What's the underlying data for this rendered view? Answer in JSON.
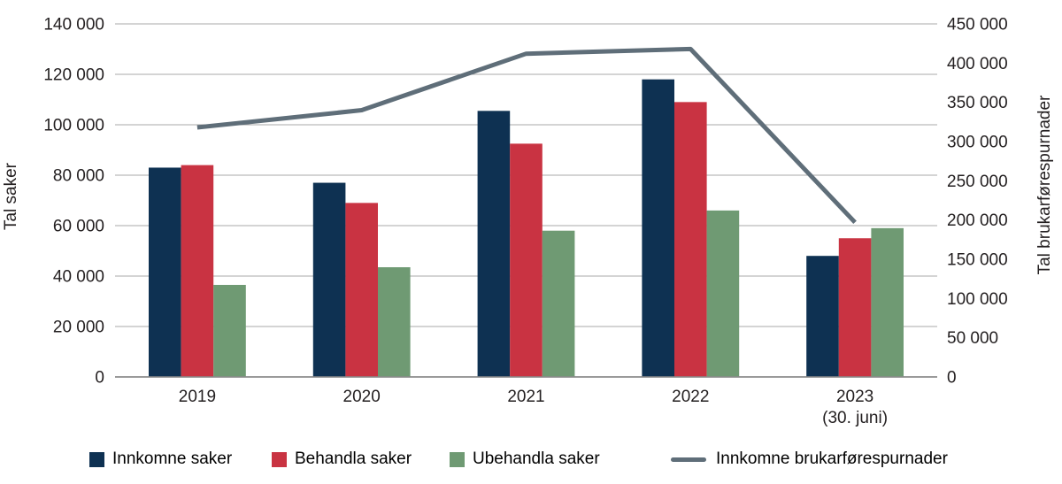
{
  "figure": {
    "background": "#ffffff",
    "text_color": "#231f20"
  },
  "chart_data": {
    "type": "bar",
    "combo_with_line": true,
    "categories": [
      [
        "2019"
      ],
      [
        "2020"
      ],
      [
        "2021"
      ],
      [
        "2022"
      ],
      [
        "2023",
        "(30. juni)"
      ]
    ],
    "bar_series": [
      {
        "name": "Innkomne saker",
        "color": "#0e3152",
        "axis": "left",
        "values": [
          83000,
          77000,
          105500,
          118000,
          48000
        ]
      },
      {
        "name": "Behandla saker",
        "color": "#c93342",
        "axis": "left",
        "values": [
          84000,
          69000,
          92500,
          109000,
          55000
        ]
      },
      {
        "name": "Ubehandla saker",
        "color": "#6f9a73",
        "axis": "left",
        "values": [
          36500,
          43500,
          58000,
          66000,
          59000
        ]
      }
    ],
    "line_series": [
      {
        "name": "Innkomne brukarførespurnader",
        "color": "#5f6e79",
        "axis": "right",
        "values": [
          318000,
          340000,
          412000,
          418000,
          197000
        ]
      }
    ],
    "left_axis": {
      "label": "Tal saker",
      "min": 0,
      "max": 140000,
      "tick_step": 20000,
      "tick_labels": [
        "0",
        "20 000",
        "40 000",
        "60 000",
        "80 000",
        "100 000",
        "120 000",
        "140 000"
      ]
    },
    "right_axis": {
      "label": "Tal brukarførespurnader",
      "min": 0,
      "max": 450000,
      "tick_step": 50000,
      "tick_labels": [
        "0",
        "50 000",
        "100 000",
        "150 000",
        "200 000",
        "250 000",
        "300 000",
        "350 000",
        "400 000",
        "450 000"
      ]
    },
    "grid": {
      "on": true,
      "color": "#a9a9a9",
      "baseline_color": "#8b8b8b"
    },
    "legend_position": "bottom",
    "title": ""
  },
  "legend": {
    "items": [
      {
        "label": "Innkomne saker",
        "swatch": "square",
        "color": "#0e3152"
      },
      {
        "label": "Behandla saker",
        "swatch": "square",
        "color": "#c93342"
      },
      {
        "label": "Ubehandla saker",
        "swatch": "square",
        "color": "#6f9a73"
      },
      {
        "label": "Innkomne brukarførespurnader",
        "swatch": "line",
        "color": "#5f6e79"
      }
    ]
  }
}
